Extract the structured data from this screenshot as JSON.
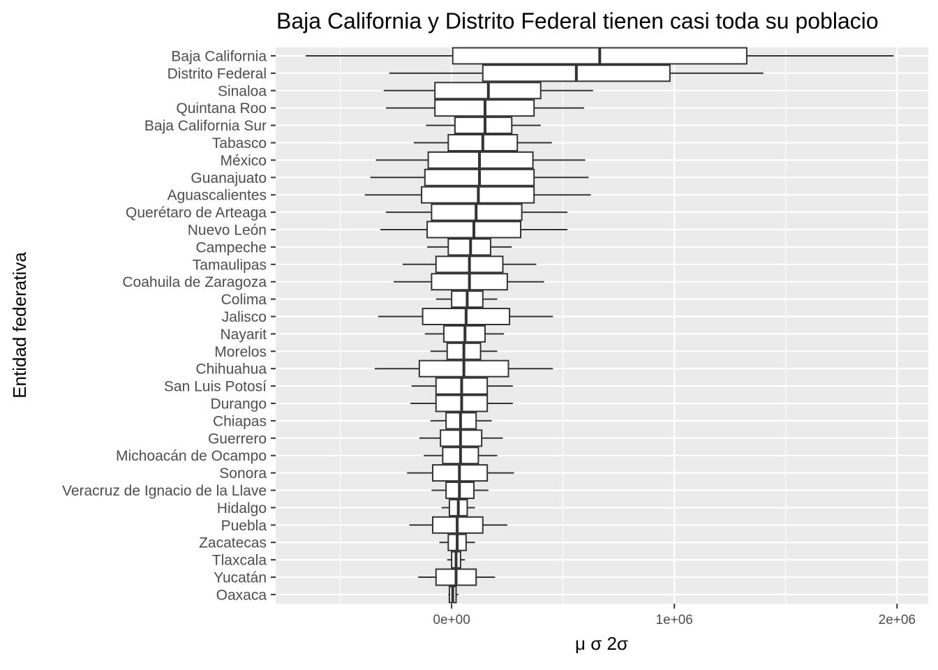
{
  "chart_data": {
    "type": "boxplot",
    "orientation": "horizontal",
    "title": "Baja California y Distrito Federal tienen casi toda su poblacio",
    "xlabel": "μ σ 2σ",
    "ylabel": "Entidad federativa",
    "xlim": [
      -790000,
      2140000
    ],
    "x_ticks": [
      0,
      1000000,
      2000000
    ],
    "x_tick_labels": [
      "0e+00",
      "1e+06",
      "2e+06"
    ],
    "grid": true,
    "panel_background": "#ebebeb",
    "box_fill": "#ffffff",
    "box_stroke": "#333333",
    "categories": [
      "Baja California",
      "Distrito Federal",
      "Sinaloa",
      "Quintana Roo",
      "Baja California Sur",
      "Tabasco",
      "México",
      "Guanajuato",
      "Aguascalientes",
      "Querétaro de Arteaga",
      "Nuevo León",
      "Campeche",
      "Tamaulipas",
      "Coahuila de Zaragoza",
      "Colima",
      "Jalisco",
      "Nayarit",
      "Morelos",
      "Chihuahua",
      "San Luis Potosí",
      "Durango",
      "Chiapas",
      "Guerrero",
      "Michoacán de Ocampo",
      "Sonora",
      "Veracruz de Ignacio de la Llave",
      "Hidalgo",
      "Puebla",
      "Zacatecas",
      "Tlaxcala",
      "Yucatán",
      "Oaxaca"
    ],
    "boxes": [
      {
        "whisker_low": -655000,
        "q1": 5000,
        "median": 665000,
        "q3": 1325000,
        "whisker_high": 1985000
      },
      {
        "whisker_low": -280000,
        "q1": 140000,
        "median": 560000,
        "q3": 980000,
        "whisker_high": 1400000
      },
      {
        "whisker_low": -305000,
        "q1": -75000,
        "median": 165000,
        "q3": 400000,
        "whisker_high": 635000
      },
      {
        "whisker_low": -295000,
        "q1": -75000,
        "median": 150000,
        "q3": 370000,
        "whisker_high": 595000
      },
      {
        "whisker_low": -115000,
        "q1": 15000,
        "median": 150000,
        "q3": 270000,
        "whisker_high": 400000
      },
      {
        "whisker_low": -170000,
        "q1": -15000,
        "median": 140000,
        "q3": 295000,
        "whisker_high": 450000
      },
      {
        "whisker_low": -340000,
        "q1": -105000,
        "median": 125000,
        "q3": 365000,
        "whisker_high": 600000
      },
      {
        "whisker_low": -365000,
        "q1": -120000,
        "median": 125000,
        "q3": 370000,
        "whisker_high": 615000
      },
      {
        "whisker_low": -390000,
        "q1": -135000,
        "median": 120000,
        "q3": 370000,
        "whisker_high": 625000
      },
      {
        "whisker_low": -295000,
        "q1": -90000,
        "median": 110000,
        "q3": 315000,
        "whisker_high": 520000
      },
      {
        "whisker_low": -320000,
        "q1": -110000,
        "median": 100000,
        "q3": 310000,
        "whisker_high": 520000
      },
      {
        "whisker_low": -110000,
        "q1": -15000,
        "median": 85000,
        "q3": 175000,
        "whisker_high": 270000
      },
      {
        "whisker_low": -220000,
        "q1": -70000,
        "median": 80000,
        "q3": 230000,
        "whisker_high": 380000
      },
      {
        "whisker_low": -260000,
        "q1": -90000,
        "median": 80000,
        "q3": 250000,
        "whisker_high": 415000
      },
      {
        "whisker_low": -70000,
        "q1": 0,
        "median": 70000,
        "q3": 140000,
        "whisker_high": 205000
      },
      {
        "whisker_low": -330000,
        "q1": -130000,
        "median": 65000,
        "q3": 260000,
        "whisker_high": 455000
      },
      {
        "whisker_low": -120000,
        "q1": -35000,
        "median": 60000,
        "q3": 150000,
        "whisker_high": 235000
      },
      {
        "whisker_low": -95000,
        "q1": -20000,
        "median": 55000,
        "q3": 130000,
        "whisker_high": 205000
      },
      {
        "whisker_low": -345000,
        "q1": -145000,
        "median": 55000,
        "q3": 255000,
        "whisker_high": 455000
      },
      {
        "whisker_low": -180000,
        "q1": -70000,
        "median": 45000,
        "q3": 160000,
        "whisker_high": 275000
      },
      {
        "whisker_low": -185000,
        "q1": -70000,
        "median": 45000,
        "q3": 160000,
        "whisker_high": 275000
      },
      {
        "whisker_low": -95000,
        "q1": -25000,
        "median": 40000,
        "q3": 110000,
        "whisker_high": 180000
      },
      {
        "whisker_low": -145000,
        "q1": -50000,
        "median": 40000,
        "q3": 135000,
        "whisker_high": 230000
      },
      {
        "whisker_low": -125000,
        "q1": -40000,
        "median": 40000,
        "q3": 120000,
        "whisker_high": 205000
      },
      {
        "whisker_low": -200000,
        "q1": -85000,
        "median": 35000,
        "q3": 160000,
        "whisker_high": 280000
      },
      {
        "whisker_low": -90000,
        "q1": -25000,
        "median": 35000,
        "q3": 100000,
        "whisker_high": 165000
      },
      {
        "whisker_low": -45000,
        "q1": -10000,
        "median": 30000,
        "q3": 70000,
        "whisker_high": 105000
      },
      {
        "whisker_low": -190000,
        "q1": -85000,
        "median": 25000,
        "q3": 140000,
        "whisker_high": 250000
      },
      {
        "whisker_low": -55000,
        "q1": -15000,
        "median": 25000,
        "q3": 65000,
        "whisker_high": 105000
      },
      {
        "whisker_low": -20000,
        "q1": 0,
        "median": 20000,
        "q3": 40000,
        "whisker_high": 60000
      },
      {
        "whisker_low": -150000,
        "q1": -70000,
        "median": 20000,
        "q3": 110000,
        "whisker_high": 195000
      },
      {
        "whisker_low": -15000,
        "q1": -10000,
        "median": 5000,
        "q3": 20000,
        "whisker_high": 30000
      }
    ]
  }
}
